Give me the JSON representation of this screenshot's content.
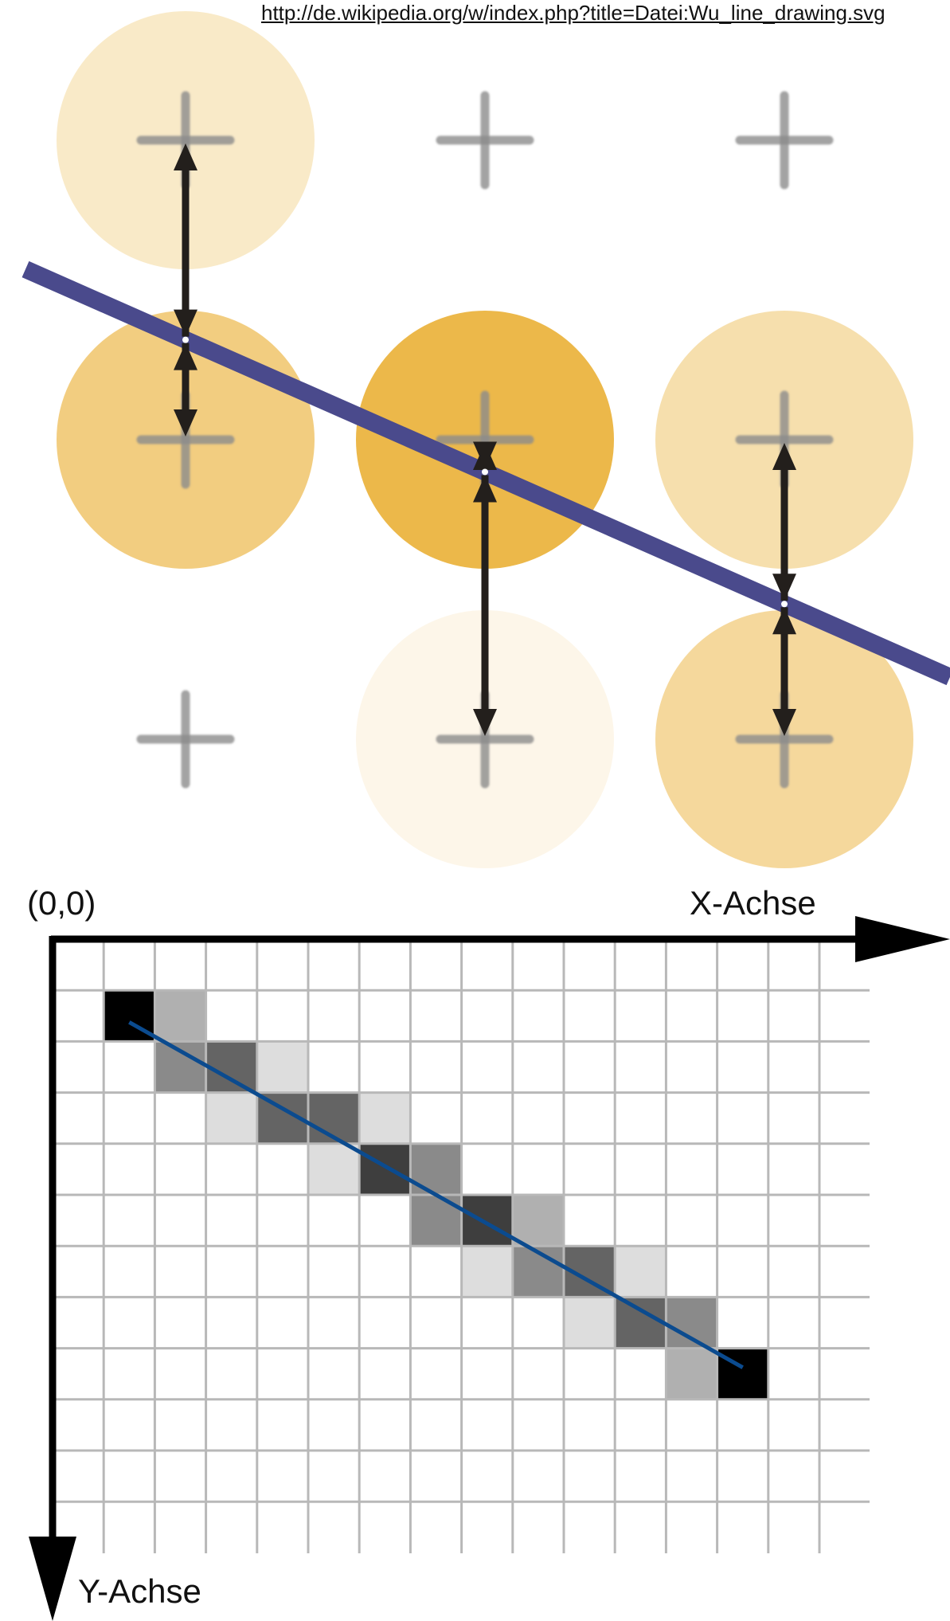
{
  "source_link": {
    "text": "http://de.wikipedia.org/w/index.php?title=Datei:Wu_line_drawing.svg"
  },
  "colors": {
    "line": "#4a4a8c",
    "pixel_line": "#0b4b8f",
    "circle_base": "#ecb84a",
    "cross": "#8c8c8c",
    "arrow": "#231f1c",
    "grid": "#b8b8b8",
    "axis": "#000000"
  },
  "top_diagram": {
    "circles": [
      {
        "col": 0,
        "row": 0,
        "intensity": 0.3
      },
      {
        "col": 0,
        "row": 1,
        "intensity": 0.7
      },
      {
        "col": 1,
        "row": 1,
        "intensity": 1.0
      },
      {
        "col": 1,
        "row": 2,
        "intensity": 0.12
      },
      {
        "col": 2,
        "row": 1,
        "intensity": 0.45
      },
      {
        "col": 2,
        "row": 2,
        "intensity": 0.55
      }
    ],
    "crosses": [
      {
        "col": 0,
        "row": 0
      },
      {
        "col": 1,
        "row": 0
      },
      {
        "col": 2,
        "row": 0
      },
      {
        "col": 0,
        "row": 1
      },
      {
        "col": 1,
        "row": 1
      },
      {
        "col": 2,
        "row": 1
      },
      {
        "col": 0,
        "row": 2
      },
      {
        "col": 1,
        "row": 2
      },
      {
        "col": 2,
        "row": 2
      }
    ]
  },
  "bottom_diagram": {
    "origin_label": "(0,0)",
    "x_axis_label": "X-Achse",
    "y_axis_label": "Y-Achse",
    "pixels": [
      {
        "x": 1,
        "y": 1,
        "gray": 0
      },
      {
        "x": 2,
        "y": 1,
        "gray": 176
      },
      {
        "x": 2,
        "y": 2,
        "gray": 138
      },
      {
        "x": 3,
        "y": 2,
        "gray": 100
      },
      {
        "x": 4,
        "y": 2,
        "gray": 221
      },
      {
        "x": 3,
        "y": 3,
        "gray": 221
      },
      {
        "x": 4,
        "y": 3,
        "gray": 100
      },
      {
        "x": 5,
        "y": 3,
        "gray": 100
      },
      {
        "x": 6,
        "y": 3,
        "gray": 221
      },
      {
        "x": 5,
        "y": 4,
        "gray": 221
      },
      {
        "x": 6,
        "y": 4,
        "gray": 62
      },
      {
        "x": 7,
        "y": 4,
        "gray": 138
      },
      {
        "x": 7,
        "y": 5,
        "gray": 138
      },
      {
        "x": 8,
        "y": 5,
        "gray": 62
      },
      {
        "x": 9,
        "y": 5,
        "gray": 176
      },
      {
        "x": 8,
        "y": 6,
        "gray": 221
      },
      {
        "x": 9,
        "y": 6,
        "gray": 138
      },
      {
        "x": 10,
        "y": 6,
        "gray": 100
      },
      {
        "x": 11,
        "y": 6,
        "gray": 221
      },
      {
        "x": 10,
        "y": 7,
        "gray": 221
      },
      {
        "x": 11,
        "y": 7,
        "gray": 100
      },
      {
        "x": 12,
        "y": 7,
        "gray": 138
      },
      {
        "x": 12,
        "y": 8,
        "gray": 176
      },
      {
        "x": 13,
        "y": 8,
        "gray": 0
      }
    ],
    "line_start": {
      "x": 1.5,
      "y": 1.5
    },
    "line_end": {
      "x": 13.5,
      "y": 8.5
    }
  }
}
